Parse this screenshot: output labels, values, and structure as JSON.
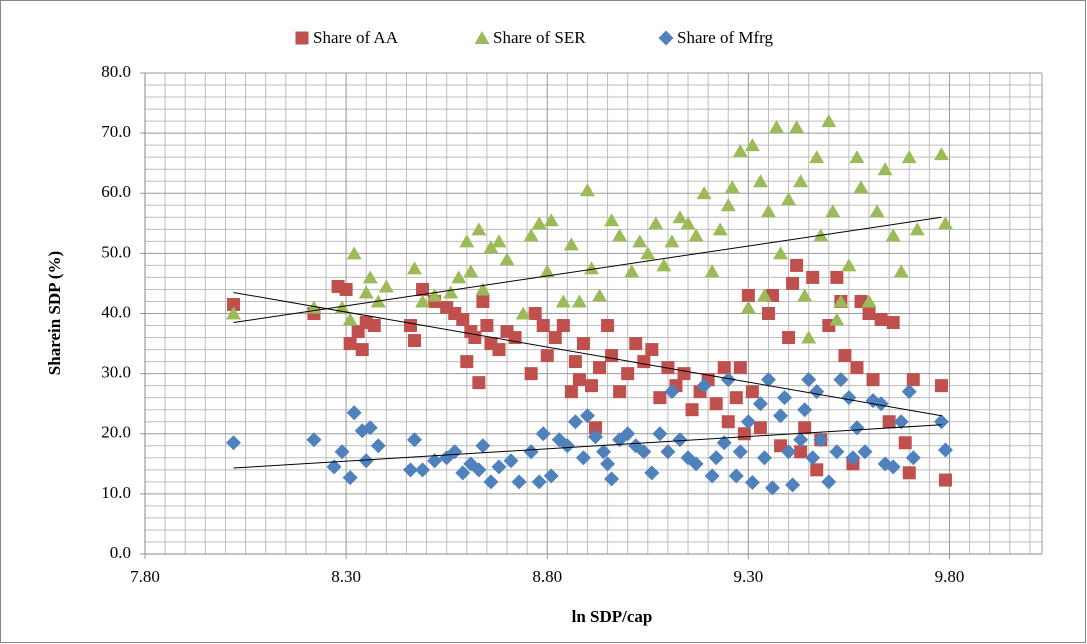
{
  "chart_data": {
    "type": "scatter",
    "x_label": "ln SDP/cap",
    "y_label": "Sharein SDP (%)",
    "xlim": [
      7.8,
      10.03
    ],
    "ylim": [
      0,
      80
    ],
    "xticks": [
      {
        "value": 7.8,
        "label": "7.80"
      },
      {
        "value": 8.3,
        "label": "8.30"
      },
      {
        "value": 8.8,
        "label": "8.80"
      },
      {
        "value": 9.3,
        "label": "9.30"
      },
      {
        "value": 9.8,
        "label": "9.80"
      }
    ],
    "yticks": [
      {
        "value": 0,
        "label": "0.0"
      },
      {
        "value": 10,
        "label": "10.0"
      },
      {
        "value": 20,
        "label": "20.0"
      },
      {
        "value": 30,
        "label": "30.0"
      },
      {
        "value": 40,
        "label": "40.0"
      },
      {
        "value": 50,
        "label": "50.0"
      },
      {
        "value": 60,
        "label": "60.0"
      },
      {
        "value": 70,
        "label": "70.0"
      },
      {
        "value": 80,
        "label": "80.0"
      }
    ],
    "grid": true,
    "legend": "top",
    "series": [
      {
        "name": "Share of AA",
        "color": "#c0504d",
        "marker": "square",
        "x": [
          8.02,
          8.22,
          8.28,
          8.3,
          8.31,
          8.33,
          8.34,
          8.35,
          8.37,
          8.46,
          8.47,
          8.49,
          8.52,
          8.55,
          8.57,
          8.59,
          8.6,
          8.61,
          8.62,
          8.63,
          8.64,
          8.65,
          8.66,
          8.68,
          8.7,
          8.72,
          8.76,
          8.77,
          8.79,
          8.8,
          8.82,
          8.84,
          8.86,
          8.87,
          8.88,
          8.89,
          8.91,
          8.92,
          8.93,
          8.95,
          8.96,
          8.98,
          9.0,
          9.02,
          9.04,
          9.06,
          9.08,
          9.1,
          9.12,
          9.14,
          9.16,
          9.18,
          9.2,
          9.22,
          9.24,
          9.25,
          9.27,
          9.28,
          9.29,
          9.3,
          9.31,
          9.33,
          9.35,
          9.36,
          9.38,
          9.4,
          9.41,
          9.42,
          9.43,
          9.44,
          9.46,
          9.47,
          9.48,
          9.5,
          9.52,
          9.53,
          9.54,
          9.56,
          9.57,
          9.58,
          9.6,
          9.61,
          9.63,
          9.65,
          9.66,
          9.69,
          9.7,
          9.71,
          9.78,
          9.79
        ],
        "values": [
          41.5,
          40,
          44.5,
          44,
          35,
          37,
          34,
          38.5,
          38,
          38,
          35.5,
          44,
          42,
          41,
          40,
          39,
          32,
          37,
          36,
          28.5,
          42,
          38,
          35,
          34,
          37,
          36,
          30,
          40,
          38,
          33,
          36,
          38,
          27,
          32,
          29,
          35,
          28,
          21,
          31,
          38,
          33,
          27,
          30,
          35,
          32,
          34,
          26,
          31,
          28,
          30,
          24,
          27,
          29,
          25,
          31,
          22,
          26,
          31,
          20,
          43,
          27,
          21,
          40,
          43,
          18,
          36,
          45,
          48,
          17,
          21,
          46,
          14,
          19,
          38,
          46,
          42,
          33,
          15,
          31,
          42,
          40,
          29,
          39,
          22,
          38.5,
          18.5,
          13.5,
          29,
          28,
          12.3
        ],
        "trend_x": [
          8.02,
          9.78
        ],
        "trend_y": [
          43.5,
          23
        ]
      },
      {
        "name": "Share of SER",
        "color": "#9bbb59",
        "marker": "triangle",
        "x": [
          8.02,
          8.22,
          8.29,
          8.31,
          8.32,
          8.35,
          8.36,
          8.38,
          8.4,
          8.47,
          8.49,
          8.52,
          8.56,
          8.58,
          8.6,
          8.61,
          8.63,
          8.64,
          8.66,
          8.68,
          8.7,
          8.74,
          8.76,
          8.78,
          8.8,
          8.81,
          8.84,
          8.86,
          8.88,
          8.9,
          8.91,
          8.93,
          8.96,
          8.98,
          9.01,
          9.03,
          9.05,
          9.07,
          9.09,
          9.11,
          9.13,
          9.15,
          9.17,
          9.19,
          9.21,
          9.23,
          9.25,
          9.26,
          9.28,
          9.3,
          9.31,
          9.33,
          9.34,
          9.35,
          9.37,
          9.38,
          9.4,
          9.42,
          9.43,
          9.44,
          9.45,
          9.47,
          9.48,
          9.5,
          9.51,
          9.52,
          9.53,
          9.55,
          9.57,
          9.58,
          9.6,
          9.62,
          9.64,
          9.66,
          9.68,
          9.7,
          9.72,
          9.78,
          9.79
        ],
        "values": [
          40,
          41,
          41,
          39,
          50,
          43.5,
          46,
          42,
          44.5,
          47.5,
          42,
          43,
          43.5,
          46,
          52,
          47,
          54,
          44,
          51,
          52,
          49,
          40,
          53,
          55,
          47,
          55.5,
          42,
          51.5,
          42,
          60.5,
          47.5,
          43,
          55.5,
          53,
          47,
          52,
          50,
          55,
          48,
          52,
          56,
          55,
          53,
          60,
          47,
          54,
          58,
          61,
          67,
          41,
          68,
          62,
          43,
          57,
          71,
          50,
          59,
          71,
          62,
          43,
          36,
          66,
          53,
          72,
          57,
          39,
          42,
          48,
          66,
          61,
          42,
          57,
          64,
          53,
          47,
          66,
          54,
          66.5,
          55
        ],
        "trend_x": [
          8.02,
          9.78
        ],
        "trend_y": [
          38.5,
          56
        ]
      },
      {
        "name": "Share of Mfrg",
        "color": "#4f81bd",
        "marker": "diamond",
        "x": [
          8.02,
          8.22,
          8.27,
          8.29,
          8.31,
          8.32,
          8.34,
          8.35,
          8.36,
          8.38,
          8.46,
          8.47,
          8.49,
          8.52,
          8.55,
          8.57,
          8.59,
          8.61,
          8.63,
          8.64,
          8.66,
          8.68,
          8.71,
          8.73,
          8.76,
          8.78,
          8.79,
          8.81,
          8.83,
          8.85,
          8.87,
          8.89,
          8.9,
          8.92,
          8.94,
          8.95,
          8.96,
          8.98,
          9.0,
          9.02,
          9.04,
          9.06,
          9.08,
          9.1,
          9.11,
          9.13,
          9.15,
          9.17,
          9.19,
          9.21,
          9.22,
          9.24,
          9.25,
          9.27,
          9.28,
          9.3,
          9.31,
          9.33,
          9.34,
          9.35,
          9.36,
          9.38,
          9.39,
          9.4,
          9.41,
          9.43,
          9.44,
          9.45,
          9.46,
          9.47,
          9.48,
          9.5,
          9.52,
          9.53,
          9.55,
          9.56,
          9.57,
          9.59,
          9.61,
          9.63,
          9.64,
          9.66,
          9.68,
          9.7,
          9.71,
          9.78,
          9.79
        ],
        "values": [
          18.5,
          19,
          14.5,
          17,
          12.7,
          23.5,
          20.5,
          15.5,
          21,
          18,
          14,
          19,
          14,
          15.5,
          16,
          17,
          13.5,
          15,
          14,
          18,
          12,
          14.5,
          15.5,
          12,
          17,
          12,
          20,
          13,
          19,
          18,
          22,
          16,
          23,
          19.5,
          17,
          15,
          12.5,
          19,
          20,
          18,
          17,
          13.5,
          20,
          17,
          27,
          19,
          16,
          15,
          28,
          13,
          16,
          18.5,
          29,
          13,
          17,
          22,
          11.9,
          25,
          16,
          29,
          11,
          23,
          26,
          17,
          11.5,
          19,
          24,
          29,
          16,
          27,
          19,
          12,
          17,
          29,
          26,
          16,
          21,
          17,
          25.5,
          25,
          15,
          14.5,
          22,
          27,
          16,
          22,
          17.3
        ],
        "trend_x": [
          8.02,
          9.78
        ],
        "trend_y": [
          14.3,
          21.5
        ]
      }
    ]
  }
}
